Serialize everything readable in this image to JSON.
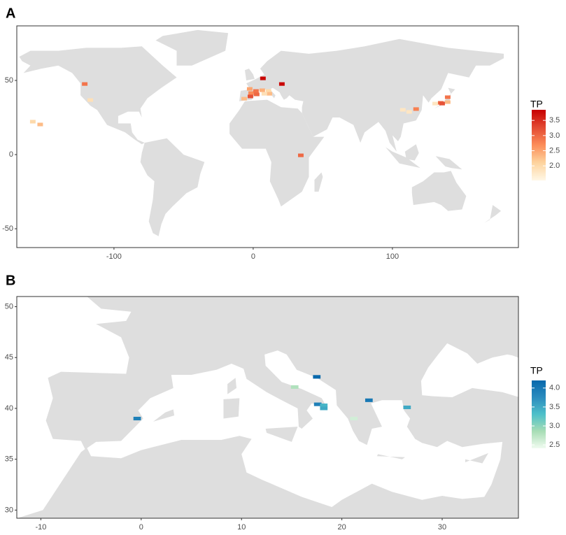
{
  "chart_data": [
    {
      "type": "tile-map",
      "label": "A",
      "legend_title": "TP",
      "xlim": [
        -169.8,
        190.5
      ],
      "ylim": [
        -62.7,
        86.8
      ],
      "xticks": [
        -100,
        0,
        100
      ],
      "yticks": [
        -50,
        0,
        50
      ],
      "colorlim": [
        1.52,
        3.85
      ],
      "colorticks": [
        {
          "value": 2.0,
          "label": "2.0"
        },
        {
          "value": 2.5,
          "label": "2.5"
        },
        {
          "value": 3.0,
          "label": "3.0"
        },
        {
          "value": 3.5,
          "label": "3.5"
        }
      ],
      "colors": [
        "#fff7e6",
        "#fdd49e",
        "#fc8d59",
        "#e34a33",
        "#c70000"
      ],
      "lon": [
        -158.3,
        -153,
        -121,
        -117,
        7,
        20.6,
        -2.5,
        -6.5,
        -1.5,
        2,
        2.5,
        -2,
        6.5,
        11,
        11.6,
        8,
        34.2,
        107.5,
        112,
        117,
        130.7,
        134.7,
        139.7,
        139.7,
        135.7
      ],
      "lat": [
        22.2,
        20.3,
        47.6,
        36.8,
        51.4,
        47.6,
        44.3,
        37.7,
        41.5,
        42.9,
        40.6,
        39.2,
        43.4,
        42.9,
        41,
        41,
        -0.5,
        30.2,
        28.8,
        30.7,
        34.4,
        34.9,
        38.7,
        35.4,
        34.4
      ],
      "values": [
        2.0,
        2.3,
        2.9,
        1.9,
        3.8,
        3.8,
        2.5,
        2.3,
        2.7,
        2.9,
        3.0,
        3.2,
        2.4,
        2.0,
        2.3,
        1.9,
        3.0,
        1.8,
        1.8,
        2.8,
        1.8,
        3.0,
        2.9,
        2.3,
        3.2
      ]
    },
    {
      "type": "tile-map",
      "label": "B",
      "legend_title": "TP",
      "xlim": [
        -12.4,
        37.6
      ],
      "ylim": [
        29.2,
        51.0
      ],
      "xticks": [
        -10,
        0,
        10,
        20,
        30
      ],
      "yticks": [
        30,
        35,
        40,
        45,
        50
      ],
      "colorlim": [
        2.41,
        4.2
      ],
      "colorticks": [
        {
          "value": 2.5,
          "label": "2.5"
        },
        {
          "value": 3.0,
          "label": "3.0"
        },
        {
          "value": 3.5,
          "label": "3.5"
        },
        {
          "value": 4.0,
          "label": "4.0"
        }
      ],
      "colors": [
        "#f0fbf0",
        "#a8ddb5",
        "#4ec0c9",
        "#2b8cbe",
        "#0868ac"
      ],
      "lon": [
        -0.4,
        15.3,
        17.5,
        17.6,
        18.2,
        18.2,
        21.2,
        22.7,
        26.5
      ],
      "lat": [
        39.0,
        42.1,
        43.1,
        40.4,
        40.3,
        40.0,
        39.0,
        40.8,
        40.1
      ],
      "values": [
        3.9,
        2.8,
        4.2,
        3.9,
        3.4,
        3.5,
        2.6,
        4.0,
        3.5
      ]
    }
  ]
}
